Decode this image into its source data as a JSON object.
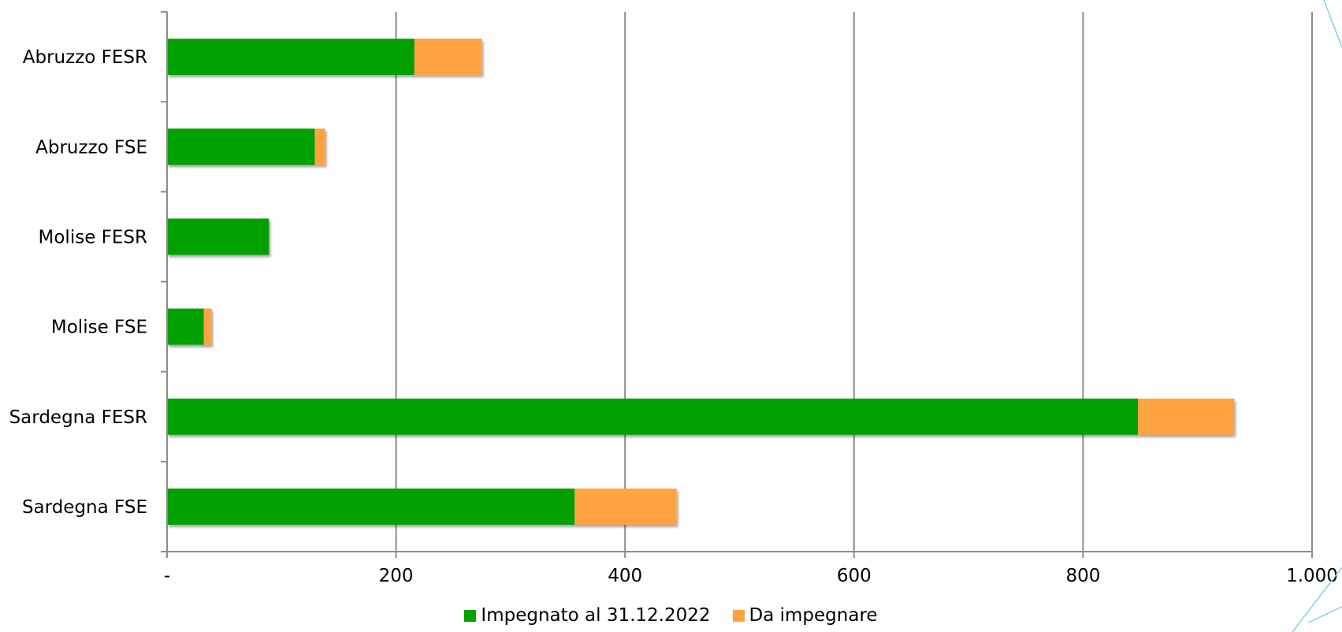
{
  "chart_data": {
    "type": "bar",
    "orientation": "horizontal",
    "stacked": true,
    "categories": [
      "Abruzzo FESR",
      "Abruzzo FSE",
      "Molise FESR",
      "Molise FSE",
      "Sardegna FESR",
      "Sardegna FSE"
    ],
    "series": [
      {
        "name": "Impegnato al 31.12.2022",
        "color": "#02a002",
        "values": [
          216,
          129,
          89,
          32,
          848,
          356
        ]
      },
      {
        "name": "Da impegnare",
        "color": "#ffa23f",
        "values": [
          59,
          9,
          0,
          7,
          84,
          89
        ]
      }
    ],
    "xlim": [
      0,
      1000
    ],
    "xticks": [
      0,
      200,
      400,
      600,
      800,
      1000
    ],
    "xtick_labels": [
      "-",
      "200",
      "400",
      "600",
      "800",
      "1.000"
    ],
    "grid": "vertical",
    "legend_position": "bottom",
    "title": "",
    "xlabel": "",
    "ylabel": ""
  }
}
